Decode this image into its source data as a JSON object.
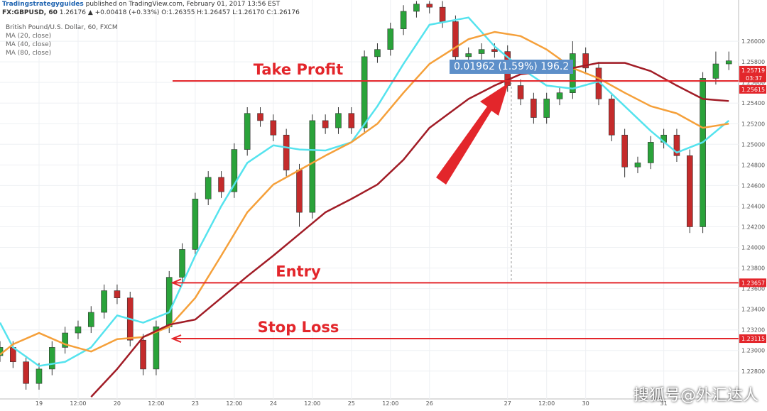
{
  "header": {
    "author": "Tradingstrategyguides",
    "published": "published on TradingView.com, February 01, 2017 13:56 EST",
    "symbol": "FX:GBPUSD, 60",
    "quote": "1.26176 ▲ +0.00418 (+0.33%) O:1.26355 H:1.26457 L:1.26170 C:1.26176",
    "description": "British Pound/U.S. Dollar, 60, FXCM",
    "watermark": "搜狐号@外汇达人"
  },
  "chart_data": {
    "type": "candlestick",
    "x": [
      0,
      4,
      8,
      12,
      16,
      20,
      24,
      28,
      32,
      36,
      40,
      44,
      48,
      52,
      56,
      60,
      64,
      68,
      72,
      76,
      80,
      84,
      88,
      92,
      96,
      100,
      104,
      108,
      112,
      116,
      120,
      124,
      128,
      132,
      136,
      140,
      144,
      148,
      152,
      156,
      160,
      164,
      168,
      172,
      176,
      180,
      184,
      188,
      192,
      196,
      200,
      204,
      208,
      212,
      216,
      220,
      224
    ],
    "open": [
      1.2295,
      1.2303,
      1.2289,
      1.2268,
      1.2282,
      1.2303,
      1.2317,
      1.2323,
      1.2337,
      1.2358,
      1.2351,
      1.231,
      1.2282,
      1.2323,
      1.2371,
      1.2398,
      1.2447,
      1.2468,
      1.2454,
      1.2495,
      1.253,
      1.2523,
      1.2509,
      1.2475,
      1.2434,
      1.2523,
      1.2516,
      1.253,
      1.2516,
      1.2585,
      1.2592,
      1.2612,
      1.2629,
      1.2636,
      1.2633,
      1.2619,
      1.2585,
      1.2588,
      1.2592,
      1.259,
      1.2557,
      1.2544,
      1.2526,
      1.2544,
      1.255,
      1.2588,
      1.2574,
      1.2544,
      1.2509,
      1.2478,
      1.2482,
      1.2502,
      1.2509,
      1.2489,
      1.242,
      1.2564,
      1.2578
    ],
    "high": [
      1.2309,
      1.2309,
      1.2295,
      1.2288,
      1.2309,
      1.2323,
      1.2329,
      1.2343,
      1.2364,
      1.2364,
      1.2357,
      1.2316,
      1.2329,
      1.2377,
      1.2404,
      1.2453,
      1.2474,
      1.2474,
      1.2501,
      1.2536,
      1.2536,
      1.2529,
      1.2515,
      1.2481,
      1.2529,
      1.2529,
      1.2536,
      1.2536,
      1.2591,
      1.2598,
      1.2618,
      1.2635,
      1.2639,
      1.2639,
      1.2639,
      1.2625,
      1.2594,
      1.2598,
      1.2598,
      1.2596,
      1.2563,
      1.255,
      1.255,
      1.2556,
      1.26,
      1.2594,
      1.258,
      1.255,
      1.2515,
      1.2488,
      1.2508,
      1.2515,
      1.2515,
      1.2495,
      1.257,
      1.259,
      1.259
    ],
    "low": [
      1.2289,
      1.2283,
      1.2262,
      1.2262,
      1.2276,
      1.2297,
      1.2311,
      1.2317,
      1.2331,
      1.2345,
      1.2304,
      1.2276,
      1.2276,
      1.2317,
      1.2365,
      1.2392,
      1.2441,
      1.2448,
      1.2448,
      1.2489,
      1.2517,
      1.2503,
      1.2469,
      1.242,
      1.2428,
      1.251,
      1.251,
      1.251,
      1.251,
      1.2579,
      1.2586,
      1.2606,
      1.2623,
      1.2627,
      1.2613,
      1.2579,
      1.2579,
      1.2582,
      1.2584,
      1.2551,
      1.2538,
      1.252,
      1.252,
      1.2538,
      1.2544,
      1.2568,
      1.2538,
      1.2503,
      1.2468,
      1.2472,
      1.2476,
      1.2496,
      1.2483,
      1.2414,
      1.2414,
      1.2558,
      1.2572
    ],
    "close": [
      1.2303,
      1.2289,
      1.2268,
      1.2282,
      1.2303,
      1.2317,
      1.2323,
      1.2337,
      1.2358,
      1.2351,
      1.231,
      1.2282,
      1.2323,
      1.2371,
      1.2398,
      1.2447,
      1.2468,
      1.2454,
      1.2495,
      1.253,
      1.2523,
      1.2509,
      1.2475,
      1.2434,
      1.2523,
      1.2516,
      1.253,
      1.2516,
      1.2585,
      1.2592,
      1.2612,
      1.2629,
      1.2636,
      1.2633,
      1.2619,
      1.2585,
      1.2588,
      1.2592,
      1.259,
      1.2557,
      1.2544,
      1.2526,
      1.2544,
      1.255,
      1.2588,
      1.2574,
      1.2544,
      1.2509,
      1.2478,
      1.2482,
      1.2502,
      1.2509,
      1.2489,
      1.242,
      1.2564,
      1.2578,
      1.2581
    ],
    "up_color": "#2aa33a",
    "down_color": "#c42b2b",
    "series": [
      {
        "name": "MA (20, close)",
        "color": "#55e3ee",
        "x": [
          0,
          4,
          12,
          20,
          28,
          36,
          44,
          52,
          60,
          68,
          76,
          84,
          92,
          100,
          108,
          116,
          124,
          132,
          144,
          152,
          160,
          168,
          176,
          184,
          192,
          200,
          208,
          216,
          224
        ],
        "values": [
          1.2327,
          1.2303,
          1.2285,
          1.2289,
          1.2303,
          1.2334,
          1.2327,
          1.2337,
          1.2392,
          1.244,
          1.2482,
          1.2499,
          1.2495,
          1.2494,
          1.2502,
          1.2537,
          1.2578,
          1.2616,
          1.2623,
          1.2595,
          1.2574,
          1.2557,
          1.2554,
          1.2561,
          1.2537,
          1.2513,
          1.2492,
          1.2502,
          1.2523
        ]
      },
      {
        "name": "MA (40, close)",
        "color": "#f5a03a",
        "x": [
          0,
          4,
          12,
          20,
          28,
          36,
          44,
          52,
          60,
          68,
          76,
          84,
          92,
          100,
          108,
          116,
          124,
          132,
          144,
          152,
          160,
          168,
          176,
          184,
          192,
          200,
          208,
          216,
          224
        ],
        "values": [
          1.2296,
          1.2306,
          1.2317,
          1.2306,
          1.2299,
          1.2311,
          1.2313,
          1.2323,
          1.2351,
          1.2392,
          1.2434,
          1.2461,
          1.2475,
          1.2489,
          1.2502,
          1.252,
          1.255,
          1.2578,
          1.2602,
          1.2609,
          1.2605,
          1.2592,
          1.2574,
          1.2564,
          1.255,
          1.2537,
          1.253,
          1.2516,
          1.252
        ]
      },
      {
        "name": "MA (80, close)",
        "color": "#a11c26",
        "x": [
          0,
          4,
          12,
          20,
          28,
          36,
          44,
          52,
          60,
          68,
          76,
          84,
          92,
          100,
          108,
          116,
          124,
          132,
          144,
          152,
          160,
          168,
          176,
          184,
          192,
          200,
          208,
          216,
          224
        ],
        "values": [
          null,
          null,
          null,
          null,
          1.2255,
          1.2282,
          1.2313,
          1.2325,
          1.233,
          1.2351,
          1.2372,
          1.2392,
          1.2413,
          1.2434,
          1.2447,
          1.2461,
          1.2485,
          1.2516,
          1.2544,
          1.2557,
          1.2568,
          1.2571,
          1.2574,
          1.2579,
          1.2579,
          1.2571,
          1.2557,
          1.2544,
          1.2542
        ]
      }
    ],
    "xlim": [
      0,
      227
    ],
    "xticks": [
      {
        "value": 12,
        "label": "19"
      },
      {
        "value": 24,
        "label": "12:00"
      },
      {
        "value": 36,
        "label": "20"
      },
      {
        "value": 48,
        "label": "12:00"
      },
      {
        "value": 60,
        "label": "23"
      },
      {
        "value": 72,
        "label": "12:00"
      },
      {
        "value": 84,
        "label": "24"
      },
      {
        "value": 96,
        "label": "12:00"
      },
      {
        "value": 108,
        "label": "25"
      },
      {
        "value": 120,
        "label": "12:00"
      },
      {
        "value": 132,
        "label": "26"
      },
      {
        "value": 156,
        "label": "27"
      },
      {
        "value": 168,
        "label": "12:00"
      },
      {
        "value": 180,
        "label": "30"
      },
      {
        "value": 204,
        "label": "31"
      }
    ],
    "ylim": [
      1.2253,
      1.264
    ],
    "yticks": [
      {
        "value": 1.228,
        "label": "1.22800"
      },
      {
        "value": 1.23,
        "label": "1.23000"
      },
      {
        "value": 1.232,
        "label": "1.23200"
      },
      {
        "value": 1.234,
        "label": "1.23400"
      },
      {
        "value": 1.236,
        "label": "1.23600"
      },
      {
        "value": 1.238,
        "label": "1.23800"
      },
      {
        "value": 1.24,
        "label": "1.24000"
      },
      {
        "value": 1.242,
        "label": "1.24200"
      },
      {
        "value": 1.244,
        "label": "1.24400"
      },
      {
        "value": 1.246,
        "label": "1.24600"
      },
      {
        "value": 1.248,
        "label": "1.24800"
      },
      {
        "value": 1.25,
        "label": "1.25000"
      },
      {
        "value": 1.252,
        "label": "1.25200"
      },
      {
        "value": 1.254,
        "label": "1.25400"
      },
      {
        "value": 1.256,
        "label": "1.25600"
      },
      {
        "value": 1.258,
        "label": "1.25800"
      },
      {
        "value": 1.26,
        "label": "1.26000"
      }
    ],
    "grid": true,
    "levels": [
      {
        "label": "Take Profit",
        "value": 1.25615,
        "price_label": "1.25615",
        "color": "#e3262b"
      },
      {
        "label": "Entry",
        "value": 1.23657,
        "price_label": "1.23657",
        "color": "#e3262b"
      },
      {
        "label": "Stop Loss",
        "value": 1.23115,
        "price_label": "1.23115",
        "color": "#e3262b"
      }
    ],
    "last_price": {
      "value": 1.25719,
      "label": "1.25719",
      "time": "03:37"
    },
    "measurement": "0.01962 (1.59%) 196.2"
  }
}
